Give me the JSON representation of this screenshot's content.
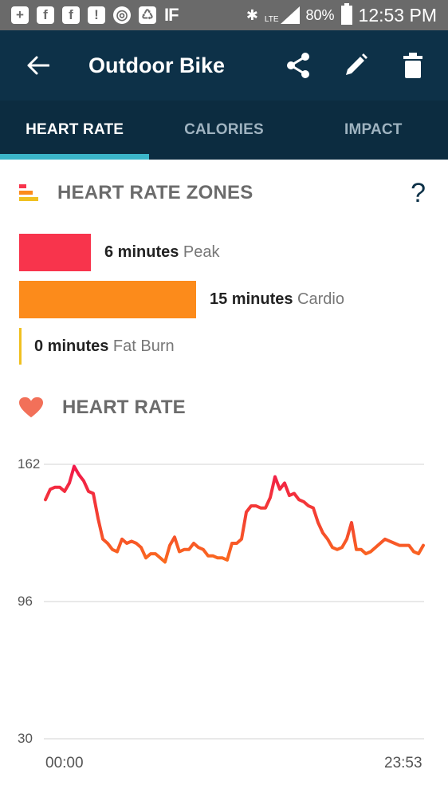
{
  "status_bar": {
    "icons_left": [
      "add-box-icon",
      "facebook-icon",
      "facebook-icon",
      "notification-icon",
      "chrome-icon",
      "recycle-icon",
      "ifttt-icon"
    ],
    "icons_right": [
      "bluetooth-icon",
      "lte-signal-icon",
      "battery-icon"
    ],
    "battery": "80%",
    "time": "12:53 PM",
    "network": "LTE",
    "ifttt_text": "IF"
  },
  "appbar": {
    "title": "Outdoor Bike",
    "actions": [
      "share-icon",
      "edit-icon",
      "delete-icon"
    ]
  },
  "tabs": [
    {
      "label": "HEART RATE",
      "active": true
    },
    {
      "label": "CALORIES",
      "active": false
    },
    {
      "label": "IMPACT",
      "active": false
    }
  ],
  "zones": {
    "title": "HEART RATE ZONES",
    "help": "?",
    "items": [
      {
        "value": "6 minutes",
        "name": "Peak",
        "minutes": 6,
        "color": "#f8344c"
      },
      {
        "value": "15 minutes",
        "name": "Cardio",
        "minutes": 15,
        "color": "#fc8b1b"
      },
      {
        "value": "0 minutes",
        "name": "Fat Burn",
        "minutes": 0,
        "color": "#f0c020"
      }
    ]
  },
  "heart_rate": {
    "title": "HEART RATE"
  },
  "chart_data": {
    "type": "line",
    "title": "",
    "xlabel": "",
    "ylabel": "",
    "yticks": [
      "162",
      "96",
      "30"
    ],
    "ylim": [
      30,
      162
    ],
    "xticks": [
      "00:00",
      "23:53"
    ],
    "series": [
      {
        "x": [
          0,
          1,
          2,
          3,
          4,
          5,
          6,
          7,
          8,
          9,
          10,
          11,
          12,
          13,
          14,
          15,
          16,
          17,
          18,
          19,
          20,
          21,
          22,
          23,
          24,
          25,
          26,
          27,
          28,
          29,
          30,
          31,
          32,
          33,
          34,
          35,
          36,
          37,
          38,
          39,
          40,
          41,
          42,
          43,
          44,
          45,
          46,
          47,
          48,
          49,
          50,
          51,
          52,
          53,
          54,
          55,
          56,
          57,
          58,
          59,
          60,
          61,
          62,
          63,
          64,
          65,
          66,
          67,
          68,
          69,
          70,
          71,
          72,
          73,
          74,
          75,
          76,
          77,
          78,
          79
        ],
        "values": [
          145,
          150,
          151,
          151,
          149,
          153,
          161,
          157,
          154,
          149,
          148,
          136,
          126,
          124,
          121,
          120,
          126,
          124,
          125,
          124,
          122,
          117,
          119,
          119,
          117,
          115,
          123,
          127,
          120,
          121,
          121,
          124,
          122,
          121,
          118,
          118,
          117,
          117,
          116,
          124,
          124,
          126,
          139,
          142,
          142,
          141,
          141,
          146,
          156,
          150,
          153,
          147,
          148,
          145,
          144,
          142,
          141,
          134,
          129,
          126,
          122,
          121,
          122,
          126,
          134,
          121,
          121,
          119,
          120,
          122,
          124,
          126,
          125,
          124,
          123,
          123,
          123,
          120,
          119,
          123
        ]
      }
    ]
  }
}
